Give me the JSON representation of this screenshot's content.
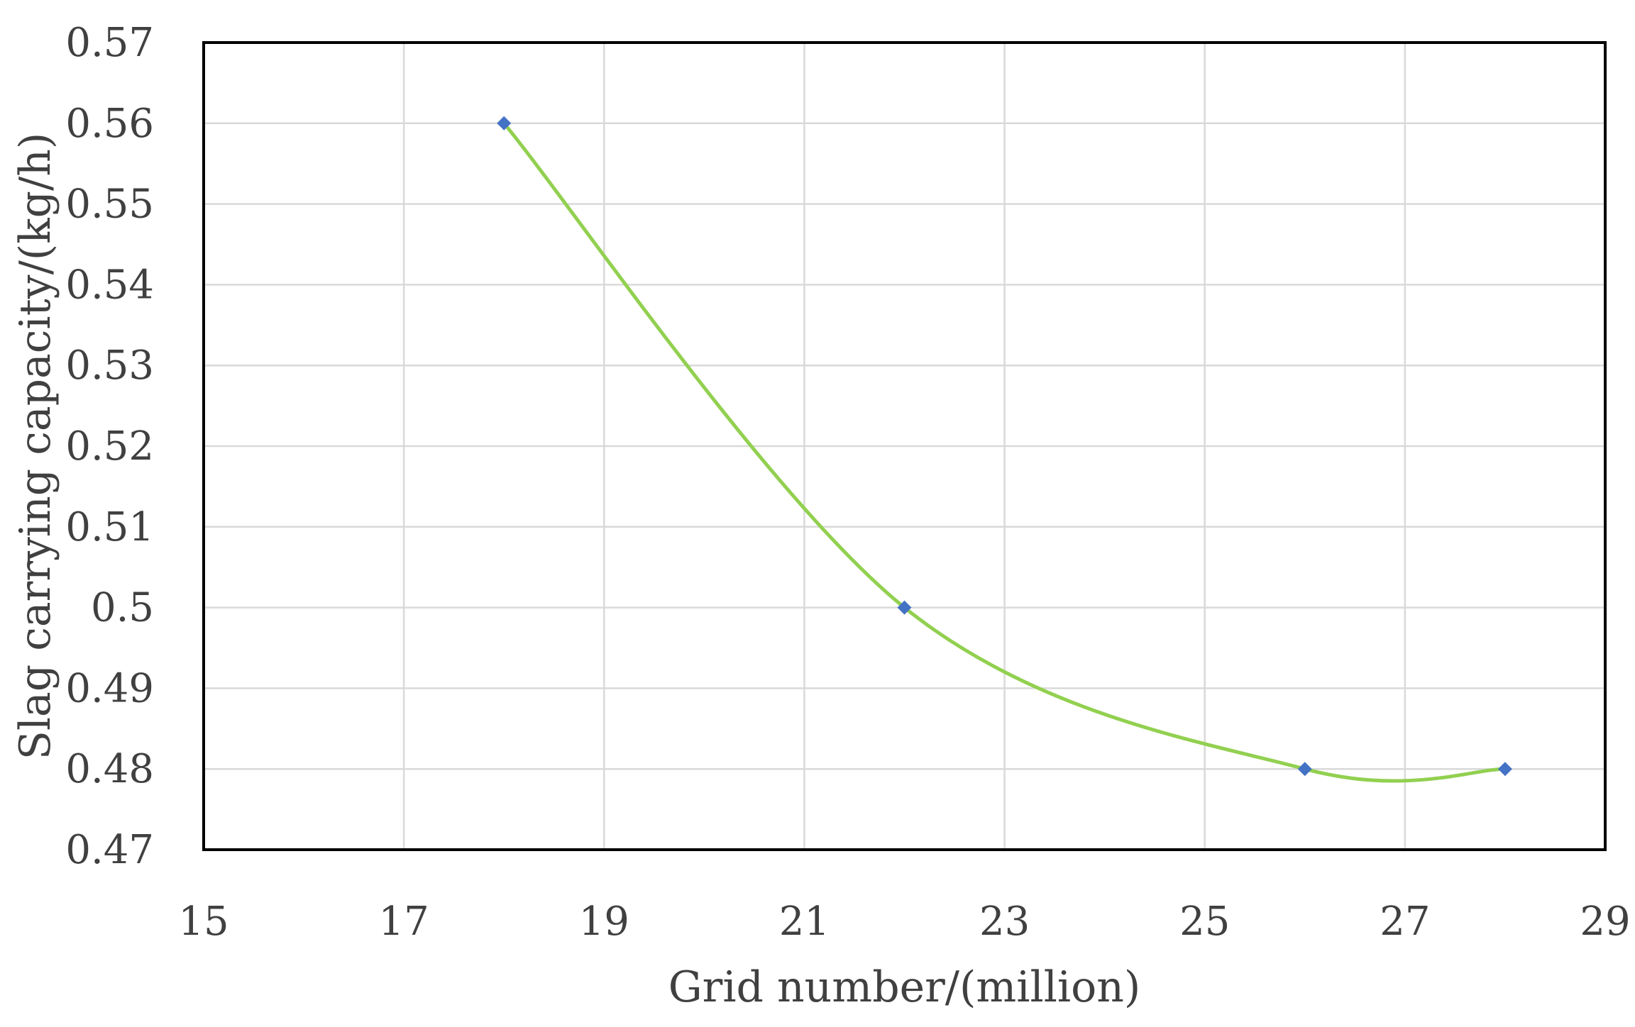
{
  "chart_data": {
    "type": "scatter",
    "title": "",
    "xlabel": "Grid number/(million)",
    "ylabel": "Slag carrying capacity/(kg/h)",
    "xlim": [
      15,
      29
    ],
    "ylim": [
      0.47,
      0.57
    ],
    "xticks": [
      "15",
      "17",
      "19",
      "21",
      "23",
      "25",
      "27",
      "29"
    ],
    "yticks": [
      "0.47",
      "0.48",
      "0.49",
      "0.5",
      "0.51",
      "0.52",
      "0.53",
      "0.54",
      "0.55",
      "0.56",
      "0.57"
    ],
    "grid": true,
    "legend": "none",
    "smooth_line": true,
    "series": [
      {
        "x": [
          18,
          22,
          26,
          28
        ],
        "y": [
          0.56,
          0.5,
          0.48,
          0.48
        ],
        "line_color": "#92D050",
        "marker_color": "#4472C4",
        "marker": "diamond"
      }
    ]
  }
}
